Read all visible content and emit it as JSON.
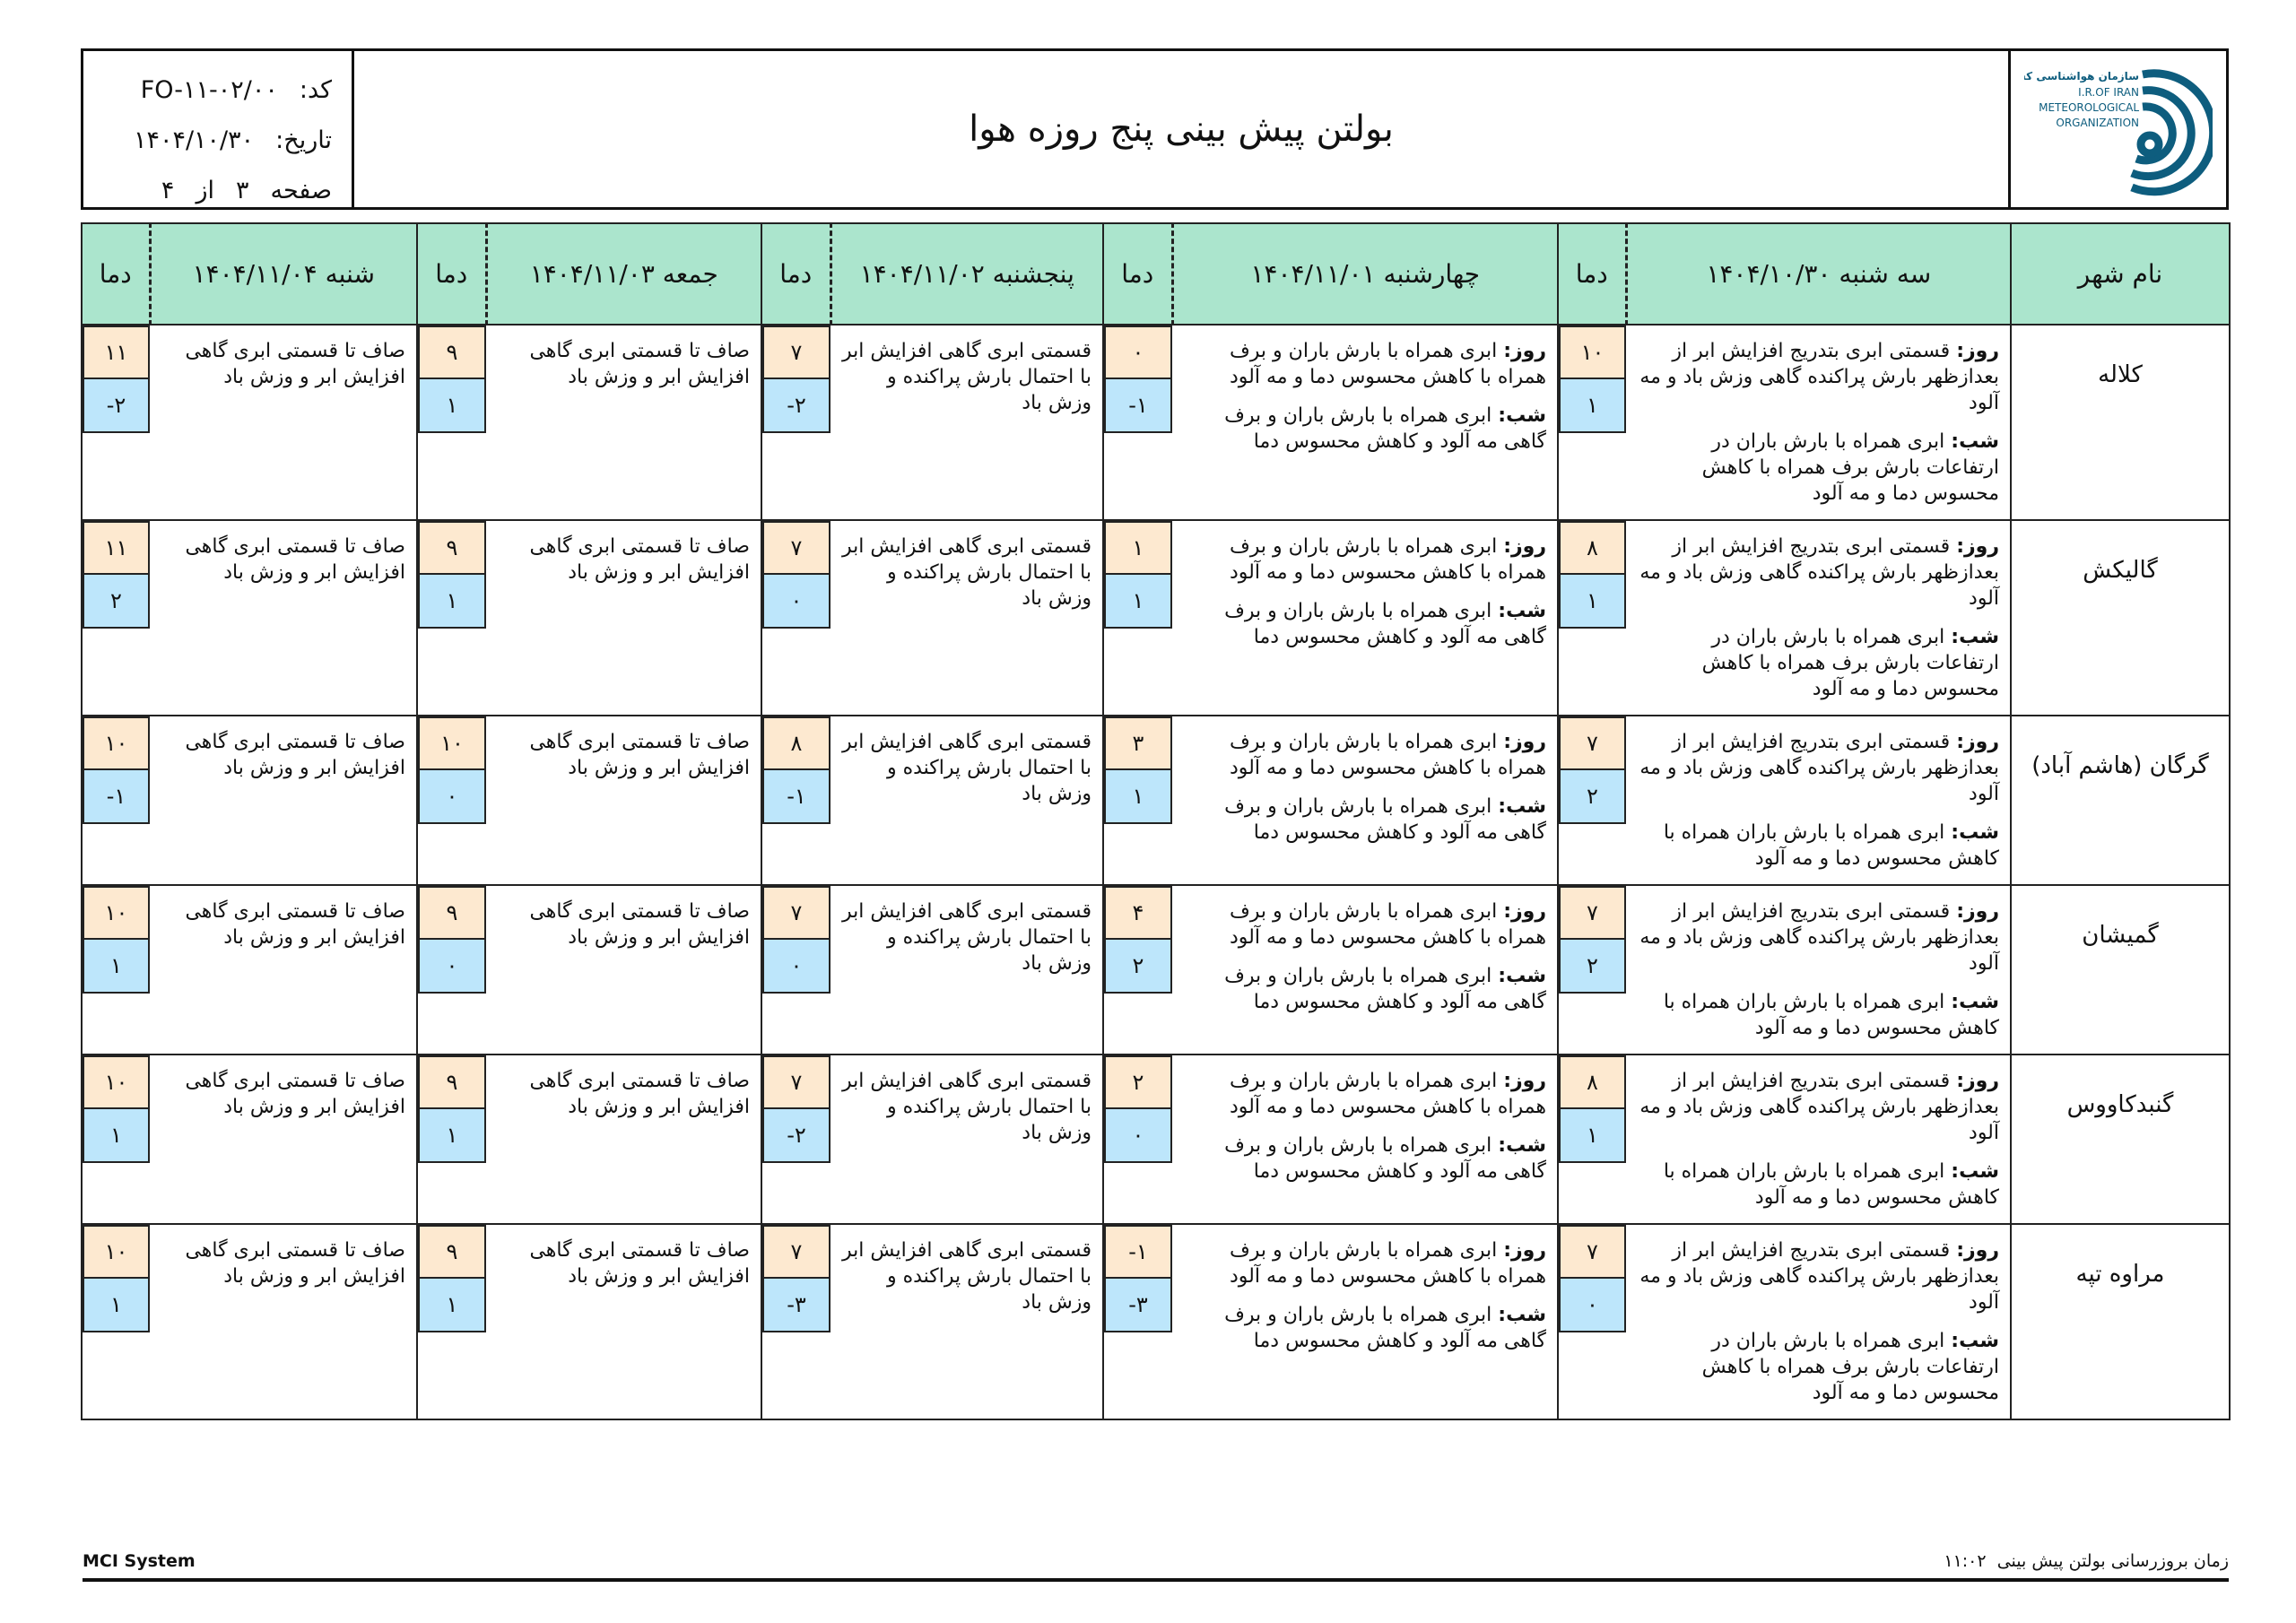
{
  "header": {
    "title": "بولتن پیش بینی پنج روزه هوا",
    "code_label": "کد:",
    "code": "FO-۱۱-۰۲/۰۰",
    "date_label": "تاریخ:",
    "date": "۱۴۰۴/۱۰/۳۰",
    "page_label": "صفحه",
    "page": "۳",
    "of_label": "از",
    "pages": "۴",
    "logo": {
      "fa": "سازمان هواشناسی کشور",
      "en1": "I.R.OF IRAN",
      "en2": "METEOROLOGICAL",
      "en3": "ORGANIZATION",
      "color": "#0e5d7e"
    }
  },
  "table": {
    "city_header": "نام شهر",
    "temp_header": "دما",
    "day_label": "روز:",
    "night_label": "شب:",
    "days": [
      "سه شنبه ۱۴۰۴/۱۰/۳۰",
      "چهارشنبه ۱۴۰۴/۱۱/۰۱",
      "پنجشنبه ۱۴۰۴/۱۱/۰۲",
      "جمعه ۱۴۰۴/۱۱/۰۳",
      "شنبه ۱۴۰۴/۱۱/۰۴"
    ],
    "rows": [
      {
        "city": "کلاله",
        "cells": [
          {
            "day": "قسمتی ابری بتدریج افزایش ابر از بعدازظهر بارش پراکنده گاهی وزش باد و مه آلود",
            "night": "ابری همراه با بارش باران در ارتفاعات بارش برف همراه با کاهش محسوس دما و مه آلود",
            "max": "۱۰",
            "min": "۱"
          },
          {
            "day": "ابری همراه با بارش باران و برف همراه با کاهش محسوس دما و مه آلود",
            "night": "ابری همراه با بارش باران و برف گاهی مه آلود و کاهش محسوس دما",
            "max": "۰",
            "min": "-۱"
          },
          {
            "text": "قسمتی ابری گاهی افزایش ابر با احتمال بارش پراکنده و وزش باد",
            "max": "۷",
            "min": "-۲"
          },
          {
            "text": "صاف تا قسمتی ابری گاهی افزایش ابر و وزش باد",
            "max": "۹",
            "min": "۱"
          },
          {
            "text": "صاف تا قسمتی ابری گاهی افزایش ابر و وزش باد",
            "max": "۱۱",
            "min": "-۲"
          }
        ]
      },
      {
        "city": "گالیکش",
        "cells": [
          {
            "day": "قسمتی ابری بتدریج افزایش ابر از بعدازظهر بارش پراکنده گاهی وزش باد و مه آلود",
            "night": "ابری همراه با بارش باران در ارتفاعات بارش برف همراه با کاهش محسوس دما و مه آلود",
            "max": "۸",
            "min": "۱"
          },
          {
            "day": "ابری همراه با بارش باران و برف همراه با کاهش محسوس دما و مه آلود",
            "night": "ابری همراه با بارش باران و برف گاهی مه آلود و کاهش محسوس دما",
            "max": "۱",
            "min": "۱"
          },
          {
            "text": "قسمتی ابری گاهی افزایش ابر با احتمال بارش پراکنده و وزش باد",
            "max": "۷",
            "min": "۰"
          },
          {
            "text": "صاف تا قسمتی ابری گاهی افزایش ابر و وزش باد",
            "max": "۹",
            "min": "۱"
          },
          {
            "text": "صاف تا قسمتی ابری گاهی افزایش ابر و وزش باد",
            "max": "۱۱",
            "min": "۲"
          }
        ]
      },
      {
        "city": "گرگان (هاشم آباد)",
        "cells": [
          {
            "day": "قسمتی ابری بتدریج افزایش ابر از بعدازظهر بارش پراکنده گاهی وزش باد و مه آلود",
            "night": "ابری همراه با بارش باران همراه با کاهش محسوس دما و مه آلود",
            "max": "۷",
            "min": "۲"
          },
          {
            "day": "ابری همراه با بارش باران و برف همراه با کاهش محسوس دما و مه آلود",
            "night": "ابری همراه با بارش باران و برف گاهی مه آلود و کاهش محسوس دما",
            "max": "۳",
            "min": "۱"
          },
          {
            "text": "قسمتی ابری گاهی افزایش ابر با احتمال بارش پراکنده و وزش باد",
            "max": "۸",
            "min": "-۱"
          },
          {
            "text": "صاف تا قسمتی ابری گاهی افزایش ابر و وزش باد",
            "max": "۱۰",
            "min": "۰"
          },
          {
            "text": "صاف تا قسمتی ابری گاهی افزایش ابر و وزش باد",
            "max": "۱۰",
            "min": "-۱"
          }
        ]
      },
      {
        "city": "گمیشان",
        "cells": [
          {
            "day": "قسمتی ابری بتدریج افزایش ابر از بعدازظهر بارش پراکنده گاهی وزش باد و مه آلود",
            "night": "ابری همراه با بارش باران همراه با کاهش محسوس دما و مه آلود",
            "max": "۷",
            "min": "۲"
          },
          {
            "day": "ابری همراه با بارش باران و برف همراه با کاهش محسوس دما و مه آلود",
            "night": "ابری همراه با بارش باران و برف گاهی مه آلود و کاهش محسوس دما",
            "max": "۴",
            "min": "۲"
          },
          {
            "text": "قسمتی ابری گاهی افزایش ابر با احتمال بارش پراکنده و وزش باد",
            "max": "۷",
            "min": "۰"
          },
          {
            "text": "صاف تا قسمتی ابری گاهی افزایش ابر و وزش باد",
            "max": "۹",
            "min": "۰"
          },
          {
            "text": "صاف تا قسمتی ابری گاهی افزایش ابر و وزش باد",
            "max": "۱۰",
            "min": "۱"
          }
        ]
      },
      {
        "city": "گنبدکاووس",
        "cells": [
          {
            "day": "قسمتی ابری بتدریج افزایش ابر از بعدازظهر بارش پراکنده گاهی وزش باد و مه آلود",
            "night": "ابری همراه با بارش باران همراه با کاهش محسوس دما و مه آلود",
            "max": "۸",
            "min": "۱"
          },
          {
            "day": "ابری همراه با بارش باران و برف همراه با کاهش محسوس دما و مه آلود",
            "night": "ابری همراه با بارش باران و برف گاهی مه آلود و کاهش محسوس دما",
            "max": "۲",
            "min": "۰"
          },
          {
            "text": "قسمتی ابری گاهی افزایش ابر با احتمال بارش پراکنده و وزش باد",
            "max": "۷",
            "min": "-۲"
          },
          {
            "text": "صاف تا قسمتی ابری گاهی افزایش ابر و وزش باد",
            "max": "۹",
            "min": "۱"
          },
          {
            "text": "صاف تا قسمتی ابری گاهی افزایش ابر و وزش باد",
            "max": "۱۰",
            "min": "۱"
          }
        ]
      },
      {
        "city": "مراوه تپه",
        "cells": [
          {
            "day": "قسمتی ابری بتدریج افزایش ابر از بعدازظهر بارش پراکنده گاهی وزش باد و مه آلود",
            "night": "ابری همراه با بارش باران در ارتفاعات بارش برف همراه با کاهش محسوس دما و مه آلود",
            "max": "۷",
            "min": "۰"
          },
          {
            "day": "ابری همراه با بارش باران و برف همراه با کاهش محسوس دما و مه آلود",
            "night": "ابری همراه با بارش باران و برف گاهی مه آلود و کاهش محسوس دما",
            "max": "-۱",
            "min": "-۳"
          },
          {
            "text": "قسمتی ابری گاهی افزایش ابر با احتمال بارش پراکنده و وزش باد",
            "max": "۷",
            "min": "-۳"
          },
          {
            "text": "صاف تا قسمتی ابری گاهی افزایش ابر و وزش باد",
            "max": "۹",
            "min": "۱"
          },
          {
            "text": "صاف تا قسمتی ابری گاهی افزایش ابر و وزش باد",
            "max": "۱۰",
            "min": "۱"
          }
        ]
      }
    ]
  },
  "colors": {
    "header_bg": "#abe5cd",
    "max_bg": "#fde9d0",
    "min_bg": "#bde6fb"
  },
  "footer": {
    "system": "MCI System",
    "update_label": "زمان بروزرسانی بولتن پیش بینی",
    "update_time": "۱۱:۰۲"
  }
}
